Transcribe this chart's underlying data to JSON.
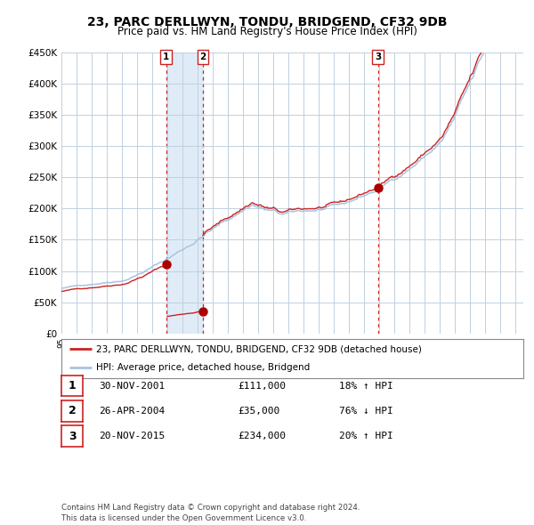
{
  "title": "23, PARC DERLLWYN, TONDU, BRIDGEND, CF32 9DB",
  "subtitle": "Price paid vs. HM Land Registry's House Price Index (HPI)",
  "ylim": [
    0,
    450000
  ],
  "yticks": [
    0,
    50000,
    100000,
    150000,
    200000,
    250000,
    300000,
    350000,
    400000,
    450000
  ],
  "ytick_labels": [
    "£0",
    "£50K",
    "£100K",
    "£150K",
    "£200K",
    "£250K",
    "£300K",
    "£350K",
    "£400K",
    "£450K"
  ],
  "hpi_color": "#a8c4e0",
  "price_color": "#cc2222",
  "sale_marker_color": "#aa0000",
  "vline_color": "#cc2222",
  "shade_color": "#d8e8f5",
  "grid_color": "#c0d0e0",
  "bg_color": "#ffffff",
  "transactions": [
    {
      "label": "1",
      "date_num": 2001.917,
      "price": 111000,
      "pct": "18%",
      "dir": "↑",
      "date_str": "30-NOV-2001"
    },
    {
      "label": "2",
      "date_num": 2004.33,
      "price": 35000,
      "pct": "76%",
      "dir": "↓",
      "date_str": "26-APR-2004"
    },
    {
      "label": "3",
      "date_num": 2015.9,
      "price": 234000,
      "pct": "20%",
      "dir": "↑",
      "date_str": "20-NOV-2015"
    }
  ],
  "legend_property_label": "23, PARC DERLLWYN, TONDU, BRIDGEND, CF32 9DB (detached house)",
  "legend_hpi_label": "HPI: Average price, detached house, Bridgend",
  "footnote": "Contains HM Land Registry data © Crown copyright and database right 2024.\nThis data is licensed under the Open Government Licence v3.0."
}
